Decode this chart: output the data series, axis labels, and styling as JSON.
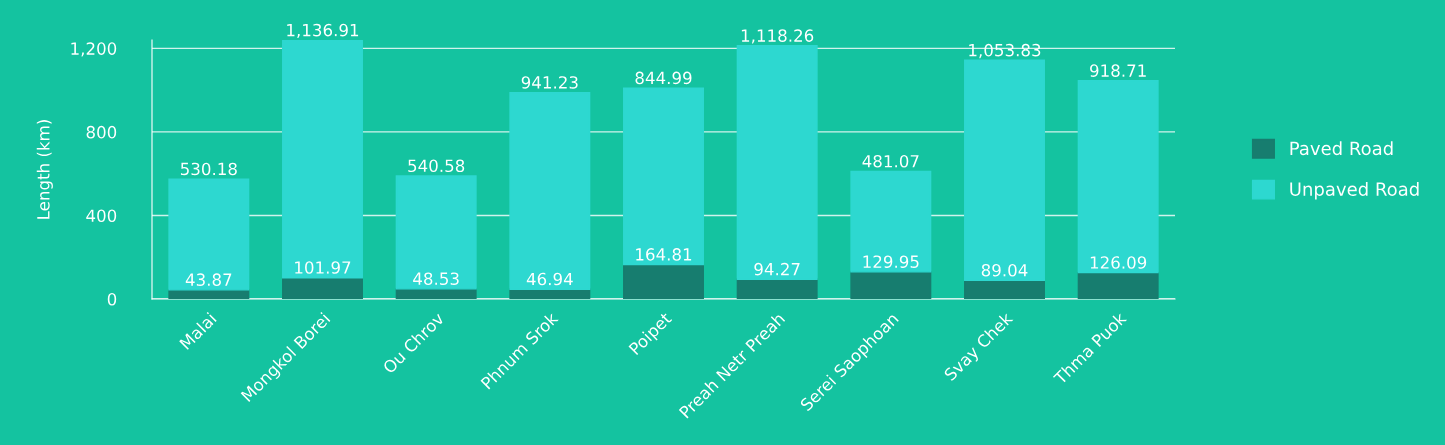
{
  "chart_data": {
    "type": "bar",
    "stacked": true,
    "ylabel": "Length (km)",
    "categories": [
      "Malai",
      "Mongkol Borei",
      "Ou Chrov",
      "Phnum Srok",
      "Poipet",
      "Preah Netr Preah",
      "Serei Saophoan",
      "Svay Chek",
      "Thma Puok"
    ],
    "series": [
      {
        "name": "Paved Road",
        "color": "#177d6f",
        "values": [
          43.87,
          101.97,
          48.53,
          46.94,
          164.81,
          94.27,
          129.95,
          89.04,
          126.09
        ],
        "value_labels": [
          "43.87",
          "101.97",
          "48.53",
          "46.94",
          "164.81",
          "94.27",
          "129.95",
          "89.04",
          "126.09"
        ]
      },
      {
        "name": "Unpaved Road",
        "color": "#2dd8d0",
        "values": [
          530.18,
          1136.91,
          540.58,
          941.23,
          844.99,
          1118.26,
          481.07,
          1053.83,
          918.71
        ],
        "value_labels": [
          "530.18",
          "1,136.91",
          "540.58",
          "941.23",
          "844.99",
          "1,118.26",
          "481.07",
          "1,053.83",
          "918.71"
        ]
      }
    ],
    "ylim": [
      0,
      1240
    ],
    "yticks": [
      0,
      400,
      800,
      {
        "value": 1200,
        "label": "1,200"
      }
    ],
    "grid": "y",
    "legend": "right"
  }
}
